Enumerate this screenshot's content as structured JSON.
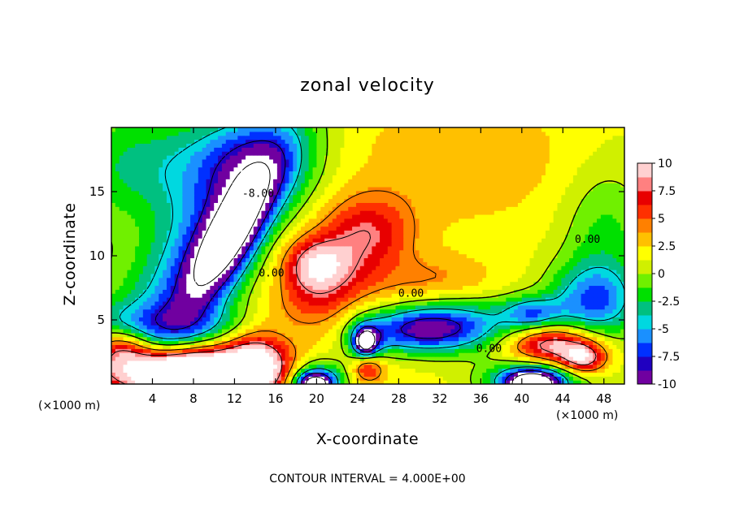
{
  "chart_data": {
    "type": "heatmap",
    "title": "zonal velocity",
    "xlabel": "X-coordinate",
    "ylabel": "Z-coordinate",
    "x_units": "(×1000 m)",
    "y_units": "(×1000 m)",
    "xlim": [
      0,
      50
    ],
    "ylim": [
      0,
      20
    ],
    "x_ticks": [
      4,
      8,
      12,
      16,
      20,
      24,
      28,
      32,
      36,
      40,
      44,
      48
    ],
    "y_ticks": [
      5,
      10,
      15
    ],
    "colorbar": {
      "ticks": [
        10,
        7.5,
        5,
        2.5,
        0,
        -2.5,
        -5,
        -7.5,
        -10
      ],
      "range": [
        -10,
        10
      ],
      "colors": [
        "#7000a0",
        "#2000c0",
        "#0030ff",
        "#1a90ff",
        "#00d8e0",
        "#00c080",
        "#00e000",
        "#70f000",
        "#d0f000",
        "#ffff00",
        "#ffc000",
        "#ff8000",
        "#ff3000",
        "#e80000",
        "#ff8080",
        "#ffd0d0"
      ]
    },
    "contour_labels": [
      {
        "text": "-8.00",
        "x": 14.3,
        "y": 14.6
      },
      {
        "text": "0.00",
        "x": 15.6,
        "y": 8.4
      },
      {
        "text": "0.00",
        "x": 29.2,
        "y": 6.8
      },
      {
        "text": "0.00",
        "x": 36.8,
        "y": 2.5
      },
      {
        "text": "0.00",
        "x": 46.4,
        "y": 11.0
      }
    ],
    "footer": "CONTOUR INTERVAL = 4.000E+00",
    "features": [
      {
        "u": -12,
        "x": 11.5,
        "z": 11.5,
        "sx": 4.5,
        "sz": 1.6,
        "rot": -52
      },
      {
        "u": -7,
        "x": 9,
        "z": 10.5,
        "sx": 9,
        "sz": 3.2,
        "rot": -50
      },
      {
        "u": -4,
        "x": 4,
        "z": 17,
        "sx": 6,
        "sz": 3
      },
      {
        "u": -5,
        "x": 14,
        "z": 17.5,
        "sx": 4,
        "sz": 2.5
      },
      {
        "u": 2,
        "x": 35,
        "z": 17.5,
        "sx": 10,
        "sz": 4
      },
      {
        "u": 5,
        "x": 25,
        "z": 12,
        "sx": 3,
        "sz": 2
      },
      {
        "u": 7,
        "x": 20,
        "z": 9.2,
        "sx": 2.2,
        "sz": 1.5
      },
      {
        "u": 3.5,
        "x": 22,
        "z": 8.5,
        "sx": 4,
        "sz": 2.5
      },
      {
        "u": 3,
        "x": 19,
        "z": 5.5,
        "sx": 3,
        "sz": 1.5
      },
      {
        "u": 2.5,
        "x": 32,
        "z": 8,
        "sx": 4,
        "sz": 1.4
      },
      {
        "u": -8,
        "x": 30,
        "z": 4.2,
        "sx": 4,
        "sz": 1.2
      },
      {
        "u": -5,
        "x": 34,
        "z": 4.8,
        "sx": 5,
        "sz": 1.5
      },
      {
        "u": -12,
        "x": 24.8,
        "z": 3.3,
        "sx": 0.6,
        "sz": 0.6
      },
      {
        "u": -7,
        "x": 24.8,
        "z": 3.3,
        "sx": 1.3,
        "sz": 1.2
      },
      {
        "u": 6,
        "x": 25,
        "z": 1.3,
        "sx": 1.1,
        "sz": 0.8
      },
      {
        "u": -8,
        "x": 20,
        "z": 0.5,
        "sx": 2.2,
        "sz": 1.2
      },
      {
        "u": -13,
        "x": 19.8,
        "z": 0,
        "sx": 1.2,
        "sz": 0.6
      },
      {
        "u": 9,
        "x": 43,
        "z": 3.1,
        "sx": 3,
        "sz": 1.1
      },
      {
        "u": 8,
        "x": 46,
        "z": 2.0,
        "sx": 1.5,
        "sz": 0.8
      },
      {
        "u": -7,
        "x": 47,
        "z": 6.5,
        "sx": 3,
        "sz": 2
      },
      {
        "u": -6,
        "x": 41,
        "z": 5.5,
        "sx": 2,
        "sz": 0.9
      },
      {
        "u": -10,
        "x": 41,
        "z": 0.3,
        "sx": 3,
        "sz": 1
      },
      {
        "u": -13,
        "x": 41,
        "z": 0,
        "sx": 1.5,
        "sz": 0.6
      },
      {
        "u": 12,
        "x": 7,
        "z": 0.8,
        "sx": 5,
        "sz": 1.2
      },
      {
        "u": 9,
        "x": 8,
        "z": 1.5,
        "sx": 8,
        "sz": 1.8
      },
      {
        "u": 7,
        "x": 1,
        "z": 3,
        "sx": 2,
        "sz": 1
      },
      {
        "u": -6,
        "x": 6,
        "z": 4,
        "sx": 8,
        "sz": 1.5
      },
      {
        "u": 6,
        "x": 14,
        "z": 2,
        "sx": 2,
        "sz": 2
      },
      {
        "u": -3,
        "x": 48,
        "z": 12,
        "sx": 3,
        "sz": 4
      }
    ]
  }
}
